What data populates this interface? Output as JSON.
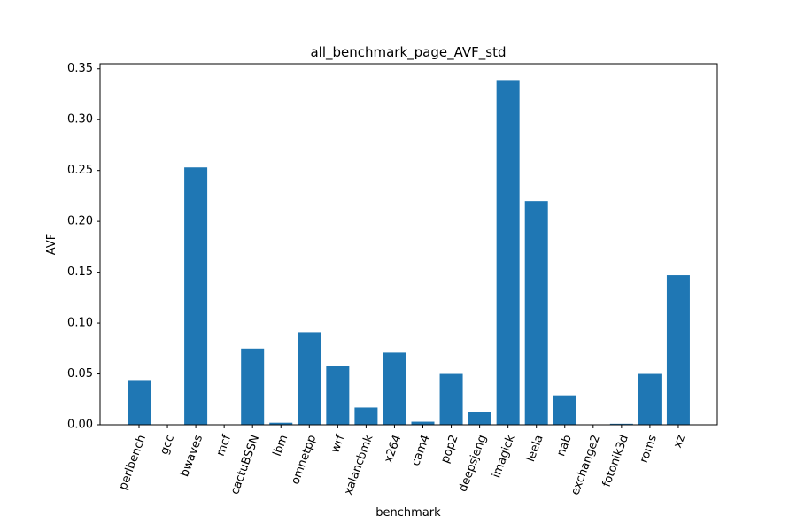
{
  "chart_data": {
    "type": "bar",
    "title": "all_benchmark_page_AVF_std",
    "xlabel": "benchmark",
    "ylabel": "AVF",
    "ylim": [
      0,
      0.355
    ],
    "yticks": [
      "0.00",
      "0.05",
      "0.10",
      "0.15",
      "0.20",
      "0.25",
      "0.30",
      "0.35"
    ],
    "grid": false,
    "bar_color": "#1f77b4",
    "categories": [
      "perlbench",
      "gcc",
      "bwaves",
      "mcf",
      "cactuBSSN",
      "lbm",
      "omnetpp",
      "wrf",
      "xalancbmk",
      "x264",
      "cam4",
      "pop2",
      "deepsjeng",
      "imagick",
      "leela",
      "nab",
      "exchange2",
      "fotonik3d",
      "roms",
      "xz"
    ],
    "values": [
      0.044,
      0.0,
      0.253,
      0.0,
      0.075,
      0.002,
      0.091,
      0.058,
      0.017,
      0.071,
      0.003,
      0.05,
      0.013,
      0.339,
      0.22,
      0.029,
      0.0,
      0.001,
      0.05,
      0.147
    ]
  }
}
